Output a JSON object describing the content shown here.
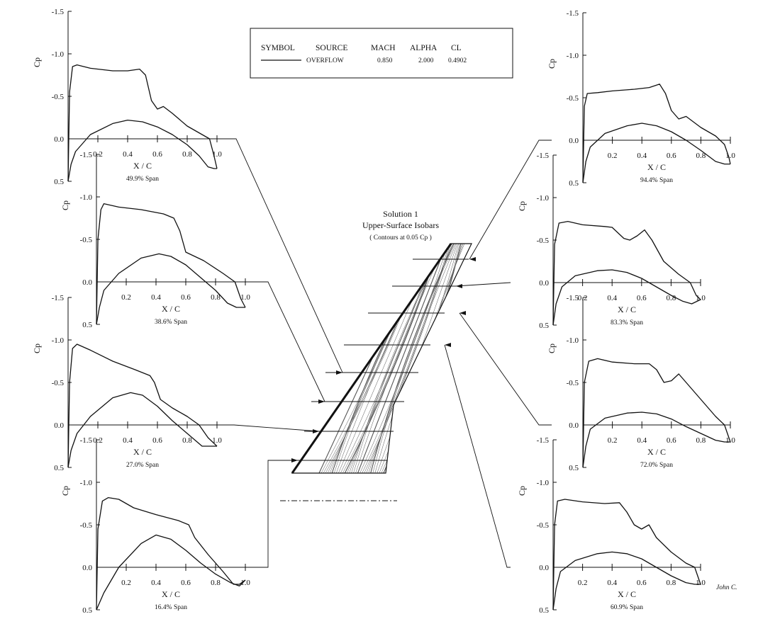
{
  "legend": {
    "headers": [
      "SYMBOL",
      "SOURCE",
      "MACH",
      "ALPHA",
      "CL"
    ],
    "rows": [
      {
        "source": "OVERFLOW",
        "mach": "0.850",
        "alpha": "2.000",
        "cl": "0.4902"
      }
    ]
  },
  "wing": {
    "title": "Solution  1",
    "subtitle": "Upper-Surface Isobars",
    "note": "( Contours at 0.05 Cp )"
  },
  "author_text": "John C.",
  "colors": {
    "ink": "#111111",
    "background": "#ffffff"
  },
  "chart_data": [
    {
      "type": "line",
      "span_label": "49.9% Span",
      "side": "left",
      "ylabel": "Cp",
      "xlabel": "X / C",
      "ylim": [
        0.5,
        -1.5
      ],
      "xlim": [
        0,
        1.0
      ],
      "yticks": [
        "-1.5",
        "-1.0",
        "-0.5",
        "0.0",
        "0.5"
      ],
      "xticks": [
        "0.2",
        "0.4",
        "0.6",
        "0.8",
        "1.0"
      ],
      "upper": [
        [
          0,
          0.5
        ],
        [
          0.01,
          -0.55
        ],
        [
          0.03,
          -0.85
        ],
        [
          0.06,
          -0.87
        ],
        [
          0.15,
          -0.83
        ],
        [
          0.3,
          -0.8
        ],
        [
          0.4,
          -0.8
        ],
        [
          0.48,
          -0.82
        ],
        [
          0.52,
          -0.75
        ],
        [
          0.56,
          -0.45
        ],
        [
          0.6,
          -0.35
        ],
        [
          0.64,
          -0.38
        ],
        [
          0.7,
          -0.3
        ],
        [
          0.8,
          -0.15
        ],
        [
          0.9,
          -0.05
        ],
        [
          0.95,
          0.0
        ],
        [
          0.98,
          0.2
        ],
        [
          1.0,
          0.35
        ]
      ],
      "lower": [
        [
          0,
          0.5
        ],
        [
          0.02,
          0.3
        ],
        [
          0.05,
          0.15
        ],
        [
          0.15,
          -0.05
        ],
        [
          0.3,
          -0.18
        ],
        [
          0.4,
          -0.22
        ],
        [
          0.5,
          -0.2
        ],
        [
          0.6,
          -0.14
        ],
        [
          0.7,
          -0.05
        ],
        [
          0.8,
          0.07
        ],
        [
          0.88,
          0.2
        ],
        [
          0.94,
          0.33
        ],
        [
          0.98,
          0.35
        ],
        [
          1.0,
          0.35
        ]
      ]
    },
    {
      "type": "line",
      "span_label": "38.6% Span",
      "side": "left",
      "ylabel": "Cp",
      "xlabel": "X / C",
      "ylim": [
        0.5,
        -1.5
      ],
      "xlim": [
        0,
        1.0
      ],
      "yticks": [
        "-1.5",
        "-1.0",
        "-0.5",
        "0.0",
        "0.5"
      ],
      "xticks": [
        "0.2",
        "0.4",
        "0.6",
        "0.8",
        "1.0"
      ],
      "upper": [
        [
          0,
          0.5
        ],
        [
          0.01,
          -0.5
        ],
        [
          0.03,
          -0.85
        ],
        [
          0.05,
          -0.92
        ],
        [
          0.15,
          -0.88
        ],
        [
          0.3,
          -0.85
        ],
        [
          0.45,
          -0.8
        ],
        [
          0.52,
          -0.75
        ],
        [
          0.56,
          -0.6
        ],
        [
          0.6,
          -0.35
        ],
        [
          0.66,
          -0.3
        ],
        [
          0.72,
          -0.25
        ],
        [
          0.85,
          -0.1
        ],
        [
          0.93,
          0.0
        ],
        [
          0.97,
          0.2
        ],
        [
          1.0,
          0.3
        ]
      ],
      "lower": [
        [
          0,
          0.5
        ],
        [
          0.02,
          0.3
        ],
        [
          0.05,
          0.1
        ],
        [
          0.15,
          -0.1
        ],
        [
          0.3,
          -0.28
        ],
        [
          0.42,
          -0.33
        ],
        [
          0.5,
          -0.3
        ],
        [
          0.6,
          -0.2
        ],
        [
          0.7,
          -0.05
        ],
        [
          0.8,
          0.1
        ],
        [
          0.88,
          0.25
        ],
        [
          0.94,
          0.3
        ],
        [
          1.0,
          0.3
        ]
      ]
    },
    {
      "type": "line",
      "span_label": "27.0% Span",
      "side": "left",
      "ylabel": "Cp",
      "xlabel": "X / C",
      "ylim": [
        0.5,
        -1.5
      ],
      "xlim": [
        0,
        1.0
      ],
      "yticks": [
        "-1.5",
        "-1.0",
        "-0.5",
        "0.0",
        "0.5"
      ],
      "xticks": [
        "0.2",
        "0.4",
        "0.6",
        "0.8",
        "1.0"
      ],
      "upper": [
        [
          0,
          0.5
        ],
        [
          0.01,
          -0.5
        ],
        [
          0.03,
          -0.9
        ],
        [
          0.06,
          -0.95
        ],
        [
          0.15,
          -0.88
        ],
        [
          0.3,
          -0.75
        ],
        [
          0.45,
          -0.65
        ],
        [
          0.55,
          -0.58
        ],
        [
          0.58,
          -0.5
        ],
        [
          0.62,
          -0.3
        ],
        [
          0.7,
          -0.2
        ],
        [
          0.8,
          -0.1
        ],
        [
          0.88,
          0.0
        ],
        [
          0.94,
          0.15
        ],
        [
          1.0,
          0.25
        ]
      ],
      "lower": [
        [
          0,
          0.5
        ],
        [
          0.02,
          0.3
        ],
        [
          0.06,
          0.1
        ],
        [
          0.15,
          -0.1
        ],
        [
          0.3,
          -0.32
        ],
        [
          0.42,
          -0.38
        ],
        [
          0.5,
          -0.35
        ],
        [
          0.6,
          -0.22
        ],
        [
          0.7,
          -0.05
        ],
        [
          0.8,
          0.1
        ],
        [
          0.9,
          0.25
        ],
        [
          1.0,
          0.25
        ]
      ]
    },
    {
      "type": "line",
      "span_label": "16.4% Span",
      "side": "left",
      "ylabel": "Cp",
      "xlabel": "X / C",
      "ylim": [
        0.5,
        -1.5
      ],
      "xlim": [
        0,
        1.0
      ],
      "yticks": [
        "-1.5",
        "-1.0",
        "-0.5",
        "0.0",
        "0.5"
      ],
      "xticks": [
        "0.2",
        "0.4",
        "0.6",
        "0.8",
        "1.0"
      ],
      "upper": [
        [
          0,
          0.5
        ],
        [
          0.01,
          -0.45
        ],
        [
          0.04,
          -0.78
        ],
        [
          0.08,
          -0.82
        ],
        [
          0.15,
          -0.8
        ],
        [
          0.25,
          -0.7
        ],
        [
          0.4,
          -0.62
        ],
        [
          0.55,
          -0.55
        ],
        [
          0.62,
          -0.5
        ],
        [
          0.66,
          -0.35
        ],
        [
          0.75,
          -0.15
        ],
        [
          0.85,
          0.05
        ],
        [
          0.92,
          0.2
        ],
        [
          0.96,
          0.2
        ],
        [
          1.0,
          0.15
        ]
      ],
      "lower": [
        [
          0,
          0.5
        ],
        [
          0.05,
          0.3
        ],
        [
          0.15,
          0.0
        ],
        [
          0.3,
          -0.28
        ],
        [
          0.4,
          -0.38
        ],
        [
          0.5,
          -0.33
        ],
        [
          0.6,
          -0.2
        ],
        [
          0.7,
          -0.05
        ],
        [
          0.8,
          0.08
        ],
        [
          0.9,
          0.18
        ],
        [
          0.96,
          0.22
        ],
        [
          1.0,
          0.15
        ]
      ]
    },
    {
      "type": "line",
      "span_label": "94.4% Span",
      "side": "right",
      "ylabel": "Cp",
      "xlabel": "X / C",
      "ylim": [
        0.5,
        -1.5
      ],
      "xlim": [
        0,
        1.0
      ],
      "yticks": [
        "-1.5",
        "-1.0",
        "-0.5",
        "0.0",
        "0.5"
      ],
      "xticks": [
        "0.2",
        "0.4",
        "0.6",
        "0.8",
        "1.0"
      ],
      "upper": [
        [
          0,
          0.5
        ],
        [
          0.01,
          -0.4
        ],
        [
          0.03,
          -0.55
        ],
        [
          0.1,
          -0.56
        ],
        [
          0.2,
          -0.58
        ],
        [
          0.35,
          -0.6
        ],
        [
          0.45,
          -0.62
        ],
        [
          0.52,
          -0.66
        ],
        [
          0.56,
          -0.55
        ],
        [
          0.6,
          -0.35
        ],
        [
          0.65,
          -0.25
        ],
        [
          0.7,
          -0.28
        ],
        [
          0.8,
          -0.15
        ],
        [
          0.9,
          -0.05
        ],
        [
          0.96,
          0.05
        ],
        [
          0.99,
          0.2
        ],
        [
          1.0,
          0.28
        ]
      ],
      "lower": [
        [
          0,
          0.5
        ],
        [
          0.02,
          0.25
        ],
        [
          0.05,
          0.08
        ],
        [
          0.15,
          -0.08
        ],
        [
          0.3,
          -0.17
        ],
        [
          0.4,
          -0.2
        ],
        [
          0.5,
          -0.17
        ],
        [
          0.6,
          -0.1
        ],
        [
          0.7,
          0.0
        ],
        [
          0.8,
          0.12
        ],
        [
          0.9,
          0.25
        ],
        [
          0.96,
          0.28
        ],
        [
          1.0,
          0.28
        ]
      ]
    },
    {
      "type": "line",
      "span_label": "83.3% Span",
      "side": "right",
      "ylabel": "Cp",
      "xlabel": "X / C",
      "ylim": [
        0.5,
        -1.5
      ],
      "xlim": [
        0,
        1.0
      ],
      "yticks": [
        "-1.5",
        "-1.0",
        "-0.5",
        "0.0",
        "0.5"
      ],
      "xticks": [
        "0.2",
        "0.4",
        "0.6",
        "0.8",
        "1.0"
      ],
      "upper": [
        [
          0,
          0.5
        ],
        [
          0.01,
          -0.45
        ],
        [
          0.04,
          -0.7
        ],
        [
          0.1,
          -0.72
        ],
        [
          0.2,
          -0.68
        ],
        [
          0.35,
          -0.66
        ],
        [
          0.4,
          -0.65
        ],
        [
          0.48,
          -0.52
        ],
        [
          0.52,
          -0.5
        ],
        [
          0.57,
          -0.55
        ],
        [
          0.62,
          -0.62
        ],
        [
          0.67,
          -0.5
        ],
        [
          0.75,
          -0.25
        ],
        [
          0.85,
          -0.1
        ],
        [
          0.93,
          0.0
        ],
        [
          0.97,
          0.15
        ],
        [
          1.0,
          0.2
        ]
      ],
      "lower": [
        [
          0,
          0.5
        ],
        [
          0.02,
          0.25
        ],
        [
          0.06,
          0.05
        ],
        [
          0.15,
          -0.08
        ],
        [
          0.3,
          -0.14
        ],
        [
          0.4,
          -0.15
        ],
        [
          0.5,
          -0.12
        ],
        [
          0.6,
          -0.05
        ],
        [
          0.7,
          0.05
        ],
        [
          0.8,
          0.15
        ],
        [
          0.88,
          0.22
        ],
        [
          0.94,
          0.25
        ],
        [
          1.0,
          0.2
        ]
      ]
    },
    {
      "type": "line",
      "span_label": "72.0% Span",
      "side": "right",
      "ylabel": "Cp",
      "xlabel": "X / C",
      "ylim": [
        0.5,
        -1.5
      ],
      "xlim": [
        0,
        1.0
      ],
      "yticks": [
        "-1.5",
        "-1.0",
        "-0.5",
        "0.0",
        "0.5"
      ],
      "xticks": [
        "0.2",
        "0.4",
        "0.6",
        "0.8",
        "1.0"
      ],
      "upper": [
        [
          0,
          0.5
        ],
        [
          0.01,
          -0.5
        ],
        [
          0.04,
          -0.75
        ],
        [
          0.1,
          -0.78
        ],
        [
          0.2,
          -0.74
        ],
        [
          0.35,
          -0.72
        ],
        [
          0.45,
          -0.72
        ],
        [
          0.5,
          -0.65
        ],
        [
          0.55,
          -0.5
        ],
        [
          0.6,
          -0.52
        ],
        [
          0.65,
          -0.6
        ],
        [
          0.7,
          -0.5
        ],
        [
          0.8,
          -0.3
        ],
        [
          0.9,
          -0.1
        ],
        [
          0.96,
          0.0
        ],
        [
          0.99,
          0.15
        ],
        [
          1.0,
          0.2
        ]
      ],
      "lower": [
        [
          0,
          0.5
        ],
        [
          0.02,
          0.25
        ],
        [
          0.05,
          0.05
        ],
        [
          0.15,
          -0.08
        ],
        [
          0.3,
          -0.14
        ],
        [
          0.4,
          -0.15
        ],
        [
          0.5,
          -0.13
        ],
        [
          0.6,
          -0.07
        ],
        [
          0.7,
          0.02
        ],
        [
          0.8,
          0.1
        ],
        [
          0.9,
          0.18
        ],
        [
          0.96,
          0.2
        ],
        [
          1.0,
          0.2
        ]
      ]
    },
    {
      "type": "line",
      "span_label": "60.9% Span",
      "side": "right",
      "ylabel": "Cp",
      "xlabel": "X / C",
      "ylim": [
        0.5,
        -1.5
      ],
      "xlim": [
        0,
        1.0
      ],
      "yticks": [
        "-1.5",
        "-1.0",
        "-0.5",
        "0.0",
        "0.5"
      ],
      "xticks": [
        "0.2",
        "0.4",
        "0.6",
        "0.8",
        "1.0"
      ],
      "upper": [
        [
          0,
          0.5
        ],
        [
          0.01,
          -0.5
        ],
        [
          0.03,
          -0.78
        ],
        [
          0.08,
          -0.8
        ],
        [
          0.2,
          -0.77
        ],
        [
          0.35,
          -0.75
        ],
        [
          0.45,
          -0.76
        ],
        [
          0.5,
          -0.65
        ],
        [
          0.55,
          -0.5
        ],
        [
          0.6,
          -0.45
        ],
        [
          0.65,
          -0.5
        ],
        [
          0.7,
          -0.35
        ],
        [
          0.8,
          -0.18
        ],
        [
          0.9,
          -0.05
        ],
        [
          0.96,
          0.0
        ],
        [
          0.99,
          0.15
        ],
        [
          1.0,
          0.2
        ]
      ],
      "lower": [
        [
          0,
          0.5
        ],
        [
          0.02,
          0.25
        ],
        [
          0.05,
          0.05
        ],
        [
          0.15,
          -0.08
        ],
        [
          0.3,
          -0.16
        ],
        [
          0.4,
          -0.18
        ],
        [
          0.5,
          -0.16
        ],
        [
          0.6,
          -0.1
        ],
        [
          0.7,
          0.0
        ],
        [
          0.8,
          0.1
        ],
        [
          0.9,
          0.18
        ],
        [
          0.96,
          0.2
        ],
        [
          1.0,
          0.2
        ]
      ]
    }
  ]
}
